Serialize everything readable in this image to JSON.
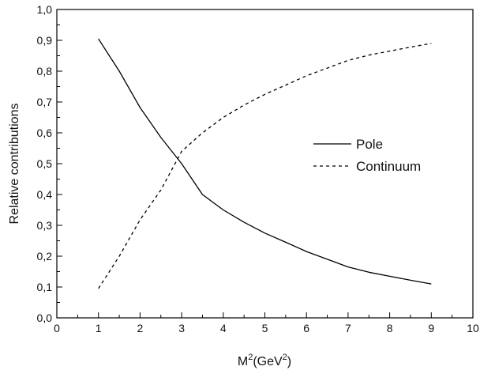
{
  "chart_data": {
    "type": "line",
    "title": "",
    "xlabel": {
      "base": "M",
      "sup1": "2",
      "mid": "(GeV",
      "sup2": "2",
      "end": ")"
    },
    "ylabel": "Relative contributions",
    "xlim": [
      0,
      10
    ],
    "ylim": [
      0.0,
      1.0
    ],
    "xticks": [
      "0",
      "1",
      "2",
      "3",
      "4",
      "5",
      "6",
      "7",
      "8",
      "9",
      "10"
    ],
    "yticks": [
      "0,0",
      "0,1",
      "0,2",
      "0,3",
      "0,4",
      "0,5",
      "0,6",
      "0,7",
      "0,8",
      "0,9",
      "1,0"
    ],
    "grid": false,
    "legend_position": "right-middle",
    "series": [
      {
        "name": "Pole",
        "style": "solid",
        "color": "#000000",
        "x": [
          1.0,
          1.5,
          2.0,
          2.5,
          3.0,
          3.5,
          4.0,
          4.5,
          5.0,
          5.5,
          6.0,
          6.5,
          7.0,
          7.5,
          8.0,
          8.5,
          9.0
        ],
        "y": [
          0.905,
          0.8,
          0.682,
          0.585,
          0.5,
          0.4,
          0.35,
          0.31,
          0.275,
          0.245,
          0.215,
          0.19,
          0.165,
          0.148,
          0.135,
          0.122,
          0.11
        ]
      },
      {
        "name": "Continuum",
        "style": "dashed",
        "color": "#000000",
        "x": [
          1.0,
          1.5,
          2.0,
          2.5,
          3.0,
          3.5,
          4.0,
          4.5,
          5.0,
          5.5,
          6.0,
          6.5,
          7.0,
          7.5,
          8.0,
          8.5,
          9.0
        ],
        "y": [
          0.095,
          0.2,
          0.318,
          0.415,
          0.54,
          0.6,
          0.65,
          0.69,
          0.725,
          0.755,
          0.785,
          0.81,
          0.835,
          0.852,
          0.865,
          0.878,
          0.89
        ]
      }
    ]
  }
}
